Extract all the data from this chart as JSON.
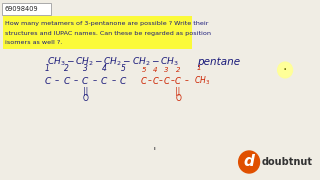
{
  "bg_color": "#f0ede4",
  "id_text": "69098409",
  "question_lines": [
    "How many metamers of 3-pentanone are possible ? Write their",
    "structures and IUPAC names. Can these be regarded as position",
    "isomers as well ?."
  ],
  "highlight_color": "#ffff00",
  "text_color": "#1a1a7a",
  "black_color": "#222222",
  "red_color": "#cc2200",
  "logo_bg": "#e05000",
  "logo_text": "doubtnut"
}
